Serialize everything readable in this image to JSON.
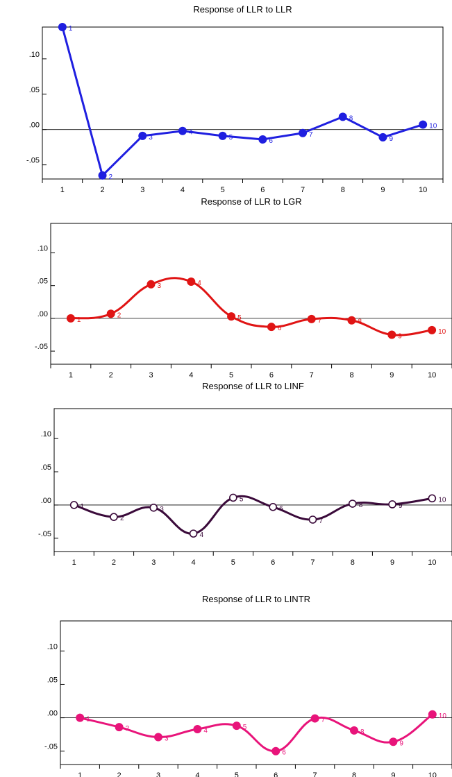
{
  "chart_data": [
    {
      "type": "line",
      "title": "Response of LLR to LLR",
      "categories": [
        "1",
        "2",
        "3",
        "4",
        "5",
        "6",
        "7",
        "8",
        "9",
        "10"
      ],
      "y_ticks": [
        ".10",
        ".05",
        ".00",
        "-.05"
      ],
      "ylim": [
        -0.07,
        0.145
      ],
      "grid": false,
      "smooth": false,
      "marker": "filled",
      "color": "#1f1fe0",
      "series": [
        {
          "values": [
            0.145,
            -0.065,
            -0.009,
            -0.002,
            -0.009,
            -0.014,
            -0.005,
            0.018,
            -0.011,
            0.007
          ],
          "point_labels": [
            "1",
            "2",
            "3",
            "4",
            "5",
            "6",
            "7",
            "8",
            "9",
            "10"
          ]
        }
      ]
    },
    {
      "type": "line",
      "title": "Response of LLR to LGR",
      "categories": [
        "1",
        "2",
        "3",
        "4",
        "5",
        "6",
        "7",
        "8",
        "9",
        "10"
      ],
      "y_ticks": [
        ".10",
        ".05",
        ".00",
        "-.05"
      ],
      "ylim": [
        -0.07,
        0.145
      ],
      "grid": false,
      "smooth": true,
      "marker": "filled",
      "color": "#e01414",
      "series": [
        {
          "values": [
            0.0,
            0.007,
            0.052,
            0.056,
            0.003,
            -0.013,
            -0.001,
            -0.003,
            -0.025,
            -0.018
          ],
          "point_labels": [
            "1",
            "2",
            "3",
            "4",
            "5",
            "6",
            "7",
            "8",
            "9",
            "10"
          ]
        }
      ]
    },
    {
      "type": "line",
      "title": "Response of LLR to LINF",
      "categories": [
        "1",
        "2",
        "3",
        "4",
        "5",
        "6",
        "7",
        "8",
        "9",
        "10"
      ],
      "y_ticks": [
        ".10",
        ".05",
        ".00",
        "-.05"
      ],
      "ylim": [
        -0.07,
        0.145
      ],
      "grid": false,
      "smooth": true,
      "marker": "open",
      "color": "#3a0a3a",
      "series": [
        {
          "values": [
            0.0,
            -0.018,
            -0.004,
            -0.043,
            0.011,
            -0.003,
            -0.022,
            0.002,
            0.001,
            0.01
          ],
          "point_labels": [
            "1",
            "2",
            "3",
            "4",
            "5",
            "6",
            "7",
            "8",
            "9",
            "10"
          ]
        }
      ]
    },
    {
      "type": "line",
      "title": "Response of LLR to LINTR",
      "categories": [
        "1",
        "2",
        "3",
        "4",
        "5",
        "6",
        "7",
        "8",
        "9",
        "10"
      ],
      "y_ticks": [
        ".10",
        ".05",
        ".00",
        "-.05"
      ],
      "ylim": [
        -0.07,
        0.145
      ],
      "grid": false,
      "smooth": true,
      "marker": "filled",
      "color": "#e8147a",
      "series": [
        {
          "values": [
            0.0,
            -0.014,
            -0.029,
            -0.017,
            -0.012,
            -0.05,
            -0.001,
            -0.019,
            -0.036,
            0.005
          ],
          "point_labels": [
            "1",
            "2",
            "3",
            "4",
            "5",
            "6",
            "7",
            "8",
            "9",
            "10"
          ]
        }
      ]
    }
  ]
}
